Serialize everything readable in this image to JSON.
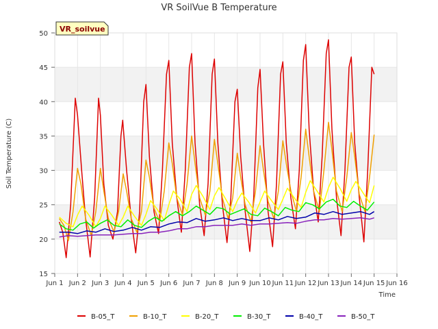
{
  "chart_data": {
    "type": "line",
    "title": "VR SoilVue B Temperature",
    "xlabel": "Time",
    "ylabel": "Soil Temperature (C)",
    "badge": "VR_soilvue",
    "ylim": [
      15,
      50
    ],
    "xlim": [
      1,
      16
    ],
    "yticks": [
      15,
      20,
      25,
      30,
      35,
      40,
      45,
      50
    ],
    "xticks": [
      {
        "v": 1,
        "label": "Jun 1"
      },
      {
        "v": 2,
        "label": "Jun 2"
      },
      {
        "v": 3,
        "label": "Jun 3"
      },
      {
        "v": 4,
        "label": "Jun 4"
      },
      {
        "v": 5,
        "label": "Jun 5"
      },
      {
        "v": 6,
        "label": "Jun 6"
      },
      {
        "v": 7,
        "label": "Jun 7"
      },
      {
        "v": 8,
        "label": "Jun 8"
      },
      {
        "v": 9,
        "label": "Jun 9"
      },
      {
        "v": 10,
        "label": "Jun 10"
      },
      {
        "v": 11,
        "label": "Jun 11"
      },
      {
        "v": 12,
        "label": "Jun 12"
      },
      {
        "v": 13,
        "label": "Jun 13"
      },
      {
        "v": 14,
        "label": "Jun 14"
      },
      {
        "v": 15,
        "label": "Jun 15"
      },
      {
        "v": 16,
        "label": "Jun 16"
      }
    ],
    "bands": [
      [
        20,
        25
      ],
      [
        30,
        35
      ],
      [
        40,
        45
      ]
    ],
    "band_color": "#f2f2f2",
    "grid": true,
    "legend_position": "bottom",
    "series": [
      {
        "name": "B-05_T",
        "color": "#dd0000",
        "x": [
          1.2,
          1.35,
          1.5,
          1.7,
          1.9,
          2.0,
          2.18,
          2.35,
          2.55,
          2.75,
          2.92,
          3.0,
          3.15,
          3.35,
          3.55,
          3.75,
          3.9,
          3.98,
          4.15,
          4.35,
          4.55,
          4.72,
          4.9,
          5.0,
          5.15,
          5.35,
          5.55,
          5.72,
          5.9,
          6.0,
          6.15,
          6.35,
          6.55,
          6.72,
          6.9,
          7.0,
          7.15,
          7.35,
          7.55,
          7.72,
          7.9,
          8.0,
          8.15,
          8.35,
          8.55,
          8.72,
          8.9,
          9.0,
          9.15,
          9.35,
          9.55,
          9.72,
          9.9,
          10.0,
          10.15,
          10.35,
          10.55,
          10.72,
          10.9,
          11.0,
          11.15,
          11.35,
          11.55,
          11.72,
          11.9,
          12.0,
          12.15,
          12.35,
          12.55,
          12.72,
          12.9,
          13.0,
          13.15,
          13.35,
          13.55,
          13.72,
          13.9,
          14.0,
          14.15,
          14.35,
          14.55,
          14.72,
          14.9,
          15.0
        ],
        "y": [
          22.5,
          21.0,
          17.3,
          25,
          40.5,
          38,
          30,
          23,
          17.4,
          26,
          40.5,
          38,
          28,
          22,
          20,
          24,
          35,
          37.3,
          30,
          23,
          18,
          24,
          40,
          42.5,
          32,
          24,
          20.8,
          30,
          44,
          46,
          34,
          26,
          21,
          30,
          45,
          47,
          34,
          25,
          20.5,
          28,
          44,
          46.2,
          34,
          25,
          19.5,
          26,
          40,
          41.8,
          32,
          24,
          18.2,
          26,
          42,
          44.7,
          34,
          24,
          18.9,
          28,
          44,
          45.8,
          34,
          26,
          21.5,
          30,
          46,
          48.3,
          36,
          27,
          22.5,
          32,
          47,
          49,
          36,
          26,
          20.5,
          30,
          45,
          46.5,
          34,
          26,
          19.6,
          30,
          45,
          44
        ]
      },
      {
        "name": "B-10_T",
        "color": "#f0a000",
        "x": [
          1.2,
          1.4,
          1.6,
          1.8,
          2.0,
          2.15,
          2.35,
          2.6,
          2.8,
          3.0,
          3.15,
          3.35,
          3.6,
          3.8,
          4.0,
          4.15,
          4.35,
          4.6,
          4.8,
          5.0,
          5.15,
          5.35,
          5.6,
          5.8,
          6.0,
          6.15,
          6.35,
          6.6,
          6.8,
          7.0,
          7.15,
          7.35,
          7.6,
          7.8,
          8.0,
          8.15,
          8.35,
          8.6,
          8.8,
          9.0,
          9.15,
          9.35,
          9.6,
          9.8,
          10.0,
          10.15,
          10.35,
          10.6,
          10.8,
          11.0,
          11.15,
          11.35,
          11.6,
          11.8,
          12.0,
          12.15,
          12.35,
          12.6,
          12.8,
          13.0,
          13.15,
          13.35,
          13.6,
          13.8,
          14.0,
          14.15,
          14.35,
          14.6,
          14.8,
          15.0
        ],
        "y": [
          23,
          22,
          19.8,
          24,
          30.3,
          28,
          23,
          20.5,
          24,
          30.3,
          27,
          23,
          21,
          24,
          29.5,
          27,
          23,
          21,
          24,
          31.5,
          29,
          24.5,
          22.5,
          27,
          34,
          31,
          26,
          23.5,
          28,
          35,
          31,
          26,
          23.5,
          27,
          34.5,
          31,
          26,
          23,
          26,
          32.5,
          29,
          25,
          22.5,
          27,
          33.6,
          30,
          25.5,
          23,
          27,
          34.3,
          31,
          27,
          24,
          29,
          36,
          32,
          27,
          24,
          30,
          37,
          33,
          27,
          24,
          29,
          35.5,
          32,
          26.5,
          24,
          29,
          35.2
        ]
      },
      {
        "name": "B-20_T",
        "color": "#ffff00",
        "x": [
          1.2,
          1.5,
          1.8,
          2.0,
          2.2,
          2.5,
          2.8,
          3.0,
          3.2,
          3.5,
          3.8,
          4.0,
          4.2,
          4.5,
          4.8,
          5.0,
          5.2,
          5.5,
          5.8,
          6.0,
          6.2,
          6.5,
          6.8,
          7.0,
          7.2,
          7.5,
          7.8,
          8.0,
          8.2,
          8.5,
          8.8,
          9.0,
          9.2,
          9.5,
          9.8,
          10.0,
          10.2,
          10.5,
          10.8,
          11.0,
          11.2,
          11.5,
          11.8,
          12.0,
          12.2,
          12.5,
          12.8,
          13.0,
          13.2,
          13.5,
          13.8,
          14.0,
          14.2,
          14.5,
          14.8,
          15.0
        ],
        "y": [
          23.2,
          22.3,
          21.8,
          23.5,
          24.8,
          23.5,
          21.8,
          23,
          24.8,
          23.5,
          22,
          23.2,
          24.8,
          23.3,
          22,
          23.6,
          25.6,
          24.3,
          22.7,
          25,
          27,
          25.8,
          24,
          26.5,
          27.8,
          26.2,
          24.3,
          26.3,
          27.5,
          25.8,
          24,
          25.6,
          26.7,
          25.4,
          23.8,
          25.4,
          27,
          25.6,
          24.3,
          25.8,
          27.4,
          26,
          24.6,
          26.8,
          28.5,
          27,
          25.4,
          27.5,
          29,
          27.4,
          25.5,
          27.2,
          28.4,
          26.8,
          25.3,
          27.8
        ]
      },
      {
        "name": "B-30_T",
        "color": "#00ee00",
        "x": [
          1.2,
          1.5,
          1.8,
          2.1,
          2.4,
          2.7,
          3.0,
          3.3,
          3.6,
          3.9,
          4.2,
          4.5,
          4.8,
          5.1,
          5.4,
          5.7,
          6.0,
          6.3,
          6.6,
          6.9,
          7.2,
          7.5,
          7.8,
          8.1,
          8.4,
          8.7,
          9.0,
          9.3,
          9.6,
          9.9,
          10.2,
          10.5,
          10.8,
          11.1,
          11.4,
          11.7,
          12.0,
          12.3,
          12.6,
          12.9,
          13.2,
          13.5,
          13.8,
          14.1,
          14.4,
          14.7,
          15.0
        ],
        "y": [
          22.2,
          21.5,
          21.3,
          22.2,
          22.5,
          21.6,
          22.3,
          22.8,
          22.0,
          21.8,
          22.8,
          22.0,
          21.7,
          22.6,
          23.2,
          22.6,
          23.4,
          24.0,
          23.4,
          24.0,
          24.8,
          24.2,
          23.6,
          24.6,
          24.4,
          23.6,
          24.0,
          24.4,
          23.6,
          23.4,
          24.5,
          24.0,
          23.4,
          24.6,
          24.2,
          24.0,
          25.3,
          25.0,
          24.4,
          25.4,
          25.8,
          24.8,
          24.6,
          25.5,
          24.8,
          24.2,
          25.4
        ]
      },
      {
        "name": "B-40_T",
        "color": "#0000aa",
        "x": [
          1.2,
          1.6,
          2.0,
          2.4,
          2.8,
          3.2,
          3.6,
          4.0,
          4.4,
          4.8,
          5.2,
          5.6,
          6.0,
          6.4,
          6.8,
          7.2,
          7.6,
          8.0,
          8.4,
          8.8,
          9.2,
          9.6,
          10.0,
          10.4,
          10.8,
          11.2,
          11.6,
          12.0,
          12.4,
          12.8,
          13.2,
          13.6,
          14.0,
          14.4,
          14.8,
          15.0
        ],
        "y": [
          21.0,
          21.0,
          20.8,
          21.2,
          21.0,
          21.5,
          21.1,
          21.3,
          21.7,
          21.3,
          21.8,
          21.7,
          22.2,
          22.5,
          22.4,
          23.0,
          22.6,
          22.8,
          23.1,
          22.7,
          23.0,
          22.7,
          22.7,
          23.1,
          22.8,
          23.3,
          23.0,
          23.2,
          23.8,
          23.6,
          24.0,
          23.6,
          23.8,
          24.0,
          23.6,
          24.0
        ]
      },
      {
        "name": "B-50_T",
        "color": "#8822bb",
        "x": [
          1.2,
          1.6,
          2.0,
          2.4,
          2.8,
          3.2,
          3.6,
          4.0,
          4.4,
          4.8,
          5.2,
          5.6,
          6.0,
          6.4,
          6.8,
          7.2,
          7.6,
          8.0,
          8.4,
          8.8,
          9.2,
          9.6,
          10.0,
          10.4,
          10.8,
          11.2,
          11.6,
          12.0,
          12.4,
          12.8,
          13.2,
          13.6,
          14.0,
          14.4,
          14.8,
          15.0
        ],
        "y": [
          20.3,
          20.5,
          20.4,
          20.5,
          20.6,
          20.6,
          20.6,
          20.7,
          20.8,
          20.8,
          21.0,
          21.0,
          21.2,
          21.5,
          21.5,
          21.8,
          21.8,
          22.0,
          22.0,
          22.0,
          22.2,
          22.0,
          22.2,
          22.2,
          22.3,
          22.4,
          22.3,
          22.6,
          22.8,
          22.8,
          23.0,
          22.9,
          23.0,
          23.1,
          22.9,
          23.1
        ]
      }
    ]
  }
}
